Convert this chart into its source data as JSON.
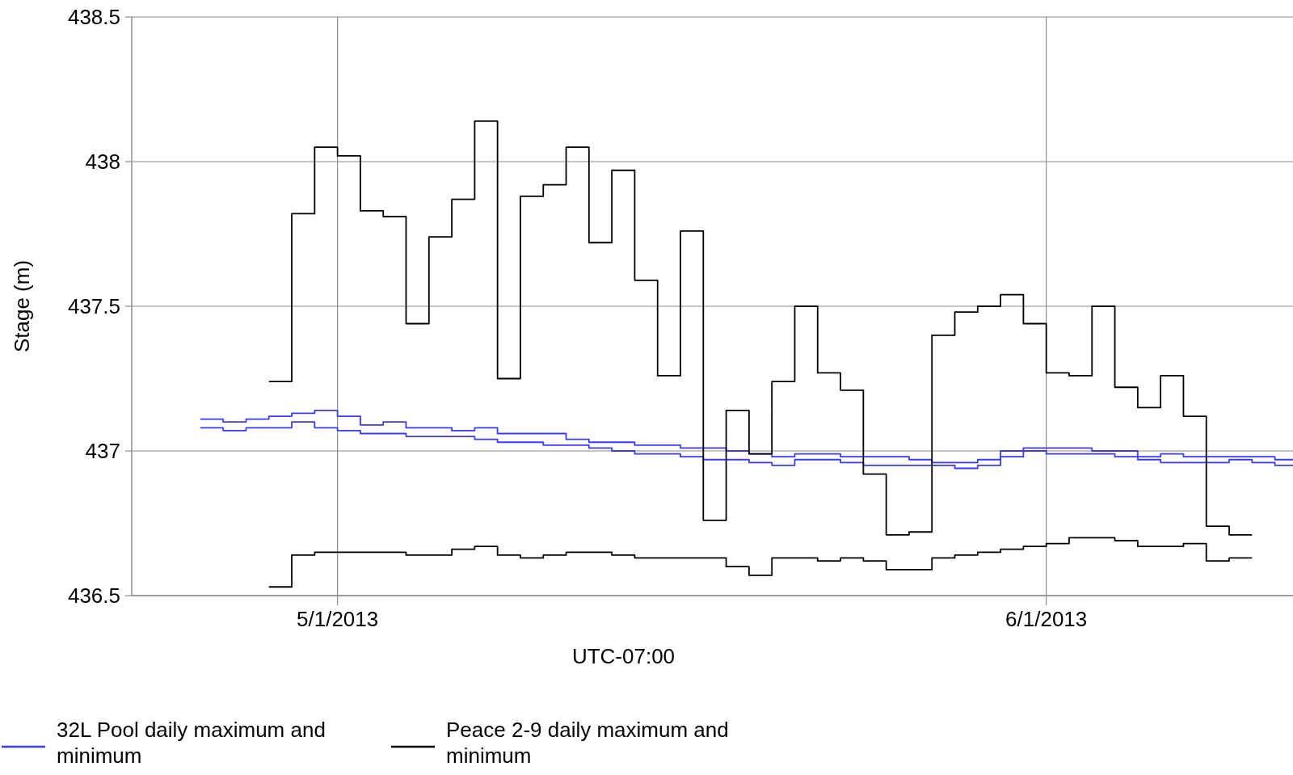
{
  "chart_data": {
    "type": "step",
    "xlabel": "UTC-07:00",
    "ylabel": "Stage (m)",
    "xlim": [
      "2013-04-22",
      "2013-06-11T19:00"
    ],
    "xticks": [
      {
        "value": "2013-05-01",
        "label": "5/1/2013"
      },
      {
        "value": "2013-06-01",
        "label": "6/1/2013"
      }
    ],
    "ylim": [
      436.5,
      438.5
    ],
    "yticks": [
      436.5,
      437,
      437.5,
      438,
      438.5
    ],
    "grid": true,
    "legend": "bottom",
    "line_style": "solid",
    "series": [
      {
        "name": "32L Pool daily maximum and minimum",
        "color": "#3b3bff",
        "x": [
          "2013-04-25",
          "2013-04-26",
          "2013-04-27",
          "2013-04-28",
          "2013-04-29",
          "2013-04-30",
          "2013-05-01",
          "2013-05-02",
          "2013-05-03",
          "2013-05-04",
          "2013-05-05",
          "2013-05-06",
          "2013-05-07",
          "2013-05-08",
          "2013-05-09",
          "2013-05-10",
          "2013-05-11",
          "2013-05-12",
          "2013-05-13",
          "2013-05-14",
          "2013-05-15",
          "2013-05-16",
          "2013-05-17",
          "2013-05-18",
          "2013-05-19",
          "2013-05-20",
          "2013-05-21",
          "2013-05-22",
          "2013-05-23",
          "2013-05-24",
          "2013-05-25",
          "2013-05-26",
          "2013-05-27",
          "2013-05-28",
          "2013-05-29",
          "2013-05-30",
          "2013-05-31",
          "2013-06-01",
          "2013-06-02",
          "2013-06-03",
          "2013-06-04",
          "2013-06-05",
          "2013-06-06",
          "2013-06-07",
          "2013-06-08",
          "2013-06-09",
          "2013-06-10",
          "2013-06-11",
          "2013-06-11T19:00"
        ],
        "values": [
          437.11,
          437.1,
          437.11,
          437.12,
          437.13,
          437.14,
          437.12,
          437.09,
          437.1,
          437.08,
          437.08,
          437.07,
          437.08,
          437.06,
          437.06,
          437.06,
          437.04,
          437.03,
          437.03,
          437.02,
          437.02,
          437.01,
          437.01,
          437.0,
          436.99,
          436.98,
          436.99,
          436.99,
          436.98,
          436.98,
          436.98,
          436.97,
          436.96,
          436.96,
          436.97,
          437.0,
          437.01,
          437.01,
          437.01,
          437.0,
          437.0,
          436.98,
          436.99,
          436.98,
          436.98,
          436.98,
          436.98,
          436.97,
          436.97
        ]
      },
      {
        "color": "#3b3bff",
        "x": [
          "2013-04-25",
          "2013-04-26",
          "2013-04-27",
          "2013-04-28",
          "2013-04-29",
          "2013-04-30",
          "2013-05-01",
          "2013-05-02",
          "2013-05-03",
          "2013-05-04",
          "2013-05-05",
          "2013-05-06",
          "2013-05-07",
          "2013-05-08",
          "2013-05-09",
          "2013-05-10",
          "2013-05-11",
          "2013-05-12",
          "2013-05-13",
          "2013-05-14",
          "2013-05-15",
          "2013-05-16",
          "2013-05-17",
          "2013-05-18",
          "2013-05-19",
          "2013-05-20",
          "2013-05-21",
          "2013-05-22",
          "2013-05-23",
          "2013-05-24",
          "2013-05-25",
          "2013-05-26",
          "2013-05-27",
          "2013-05-28",
          "2013-05-29",
          "2013-05-30",
          "2013-05-31",
          "2013-06-01",
          "2013-06-02",
          "2013-06-03",
          "2013-06-04",
          "2013-06-05",
          "2013-06-06",
          "2013-06-07",
          "2013-06-08",
          "2013-06-09",
          "2013-06-10",
          "2013-06-11",
          "2013-06-11T19:00"
        ],
        "values": [
          437.08,
          437.07,
          437.08,
          437.08,
          437.1,
          437.08,
          437.07,
          437.06,
          437.06,
          437.05,
          437.05,
          437.05,
          437.04,
          437.03,
          437.03,
          437.02,
          437.02,
          437.01,
          437.0,
          436.99,
          436.99,
          436.98,
          436.97,
          436.97,
          436.96,
          436.95,
          436.97,
          436.97,
          436.96,
          436.95,
          436.95,
          436.95,
          436.95,
          436.94,
          436.95,
          436.98,
          437.0,
          436.99,
          436.99,
          436.99,
          436.98,
          436.97,
          436.96,
          436.96,
          436.96,
          436.97,
          436.96,
          436.95,
          436.95
        ]
      },
      {
        "name": "Peace 2-9 daily maximum and minimum",
        "color": "#000000",
        "x": [
          "2013-04-28",
          "2013-04-29",
          "2013-04-30",
          "2013-05-01",
          "2013-05-02",
          "2013-05-03",
          "2013-05-04",
          "2013-05-05",
          "2013-05-06",
          "2013-05-07",
          "2013-05-08",
          "2013-05-09",
          "2013-05-10",
          "2013-05-11",
          "2013-05-12",
          "2013-05-13",
          "2013-05-14",
          "2013-05-15",
          "2013-05-16",
          "2013-05-17",
          "2013-05-18",
          "2013-05-19",
          "2013-05-20",
          "2013-05-21",
          "2013-05-22",
          "2013-05-23",
          "2013-05-24",
          "2013-05-25",
          "2013-05-26",
          "2013-05-27",
          "2013-05-28",
          "2013-05-29",
          "2013-05-30",
          "2013-05-31",
          "2013-06-01",
          "2013-06-02",
          "2013-06-03",
          "2013-06-04",
          "2013-06-05",
          "2013-06-06",
          "2013-06-07",
          "2013-06-08",
          "2013-06-09",
          "2013-06-10"
        ],
        "values": [
          437.24,
          437.82,
          438.05,
          438.02,
          437.83,
          437.81,
          437.44,
          437.74,
          437.87,
          438.14,
          437.25,
          437.88,
          437.92,
          438.05,
          437.72,
          437.97,
          437.59,
          437.26,
          437.76,
          436.76,
          437.14,
          436.99,
          437.24,
          437.5,
          437.27,
          437.21,
          436.92,
          436.71,
          436.72,
          437.4,
          437.48,
          437.5,
          437.54,
          437.44,
          437.27,
          437.26,
          437.5,
          437.22,
          437.15,
          437.26,
          437.12,
          436.74,
          436.71,
          436.71
        ]
      },
      {
        "color": "#000000",
        "x": [
          "2013-04-28",
          "2013-04-29",
          "2013-04-30",
          "2013-05-01",
          "2013-05-02",
          "2013-05-03",
          "2013-05-04",
          "2013-05-05",
          "2013-05-06",
          "2013-05-07",
          "2013-05-08",
          "2013-05-09",
          "2013-05-10",
          "2013-05-11",
          "2013-05-12",
          "2013-05-13",
          "2013-05-14",
          "2013-05-15",
          "2013-05-16",
          "2013-05-17",
          "2013-05-18",
          "2013-05-19",
          "2013-05-20",
          "2013-05-21",
          "2013-05-22",
          "2013-05-23",
          "2013-05-24",
          "2013-05-25",
          "2013-05-26",
          "2013-05-27",
          "2013-05-28",
          "2013-05-29",
          "2013-05-30",
          "2013-05-31",
          "2013-06-01",
          "2013-06-02",
          "2013-06-03",
          "2013-06-04",
          "2013-06-05",
          "2013-06-06",
          "2013-06-07",
          "2013-06-08",
          "2013-06-09",
          "2013-06-10"
        ],
        "values": [
          436.53,
          436.64,
          436.65,
          436.65,
          436.65,
          436.65,
          436.64,
          436.64,
          436.66,
          436.67,
          436.64,
          436.63,
          436.64,
          436.65,
          436.65,
          436.64,
          436.63,
          436.63,
          436.63,
          436.63,
          436.6,
          436.57,
          436.63,
          436.63,
          436.62,
          436.63,
          436.62,
          436.59,
          436.59,
          436.63,
          436.64,
          436.65,
          436.66,
          436.67,
          436.68,
          436.7,
          436.7,
          436.69,
          436.67,
          436.67,
          436.68,
          436.62,
          436.63,
          436.63
        ]
      }
    ]
  }
}
